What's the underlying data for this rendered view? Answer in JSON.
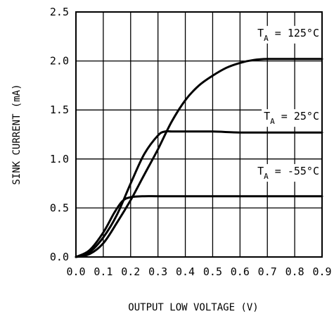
{
  "chart_data": {
    "type": "line",
    "xlabel": "OUTPUT LOW VOLTAGE (V)",
    "ylabel": "SINK CURRENT (mA)",
    "xlim": [
      0.0,
      0.9
    ],
    "ylim": [
      0.0,
      2.5
    ],
    "x_ticks": [
      "0.0",
      "0.1",
      "0.2",
      "0.3",
      "0.4",
      "0.5",
      "0.6",
      "0.7",
      "0.8",
      "0.9"
    ],
    "y_ticks": [
      "0.0",
      "0.5",
      "1.0",
      "1.5",
      "2.0",
      "2.5"
    ],
    "x_tick_values": [
      0.0,
      0.1,
      0.2,
      0.3,
      0.4,
      0.5,
      0.6,
      0.7,
      0.8,
      0.9
    ],
    "y_tick_values": [
      0.0,
      0.5,
      1.0,
      1.5,
      2.0,
      2.5
    ],
    "grid": true,
    "series": [
      {
        "name": "T_A = 125°C",
        "label_main": "T",
        "label_sub": "A",
        "label_rest": " = 125°C",
        "x": [
          0.0,
          0.05,
          0.1,
          0.15,
          0.2,
          0.25,
          0.3,
          0.35,
          0.4,
          0.45,
          0.5,
          0.55,
          0.6,
          0.65,
          0.7,
          0.8,
          0.9
        ],
        "y": [
          0.0,
          0.03,
          0.14,
          0.35,
          0.58,
          0.84,
          1.1,
          1.38,
          1.6,
          1.75,
          1.85,
          1.93,
          1.98,
          2.01,
          2.02,
          2.02,
          2.02
        ]
      },
      {
        "name": "T_A = 25°C",
        "label_main": "T",
        "label_sub": "A",
        "label_rest": " = 25°C",
        "x": [
          0.0,
          0.05,
          0.1,
          0.15,
          0.2,
          0.25,
          0.3,
          0.325,
          0.35,
          0.4,
          0.5,
          0.6,
          0.7,
          0.8,
          0.9
        ],
        "y": [
          0.0,
          0.05,
          0.2,
          0.43,
          0.75,
          1.05,
          1.24,
          1.28,
          1.28,
          1.28,
          1.28,
          1.27,
          1.27,
          1.27,
          1.27
        ]
      },
      {
        "name": "T_A = -55°C",
        "label_main": "T",
        "label_sub": "A",
        "label_rest": " = -55°C",
        "x": [
          0.0,
          0.05,
          0.1,
          0.14,
          0.17,
          0.2,
          0.25,
          0.3,
          0.4,
          0.5,
          0.6,
          0.7,
          0.8,
          0.9
        ],
        "y": [
          0.0,
          0.07,
          0.25,
          0.45,
          0.57,
          0.61,
          0.62,
          0.62,
          0.62,
          0.62,
          0.62,
          0.62,
          0.62,
          0.62
        ]
      }
    ]
  }
}
